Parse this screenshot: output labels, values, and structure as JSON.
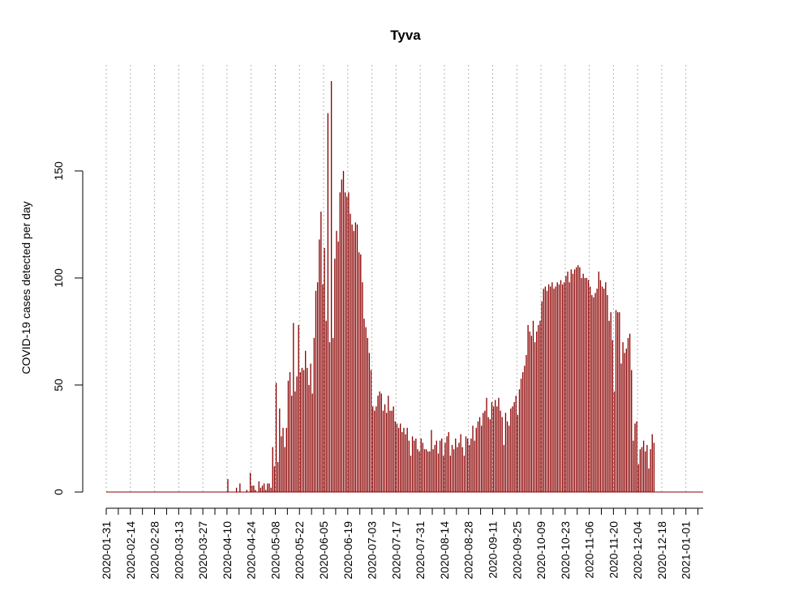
{
  "chart_data": {
    "type": "bar",
    "title": "Tyva",
    "xlabel": "",
    "ylabel": "COVID-19 cases detected per day",
    "ylim": [
      0,
      192
    ],
    "yticks": [
      0,
      50,
      100,
      150
    ],
    "xlim": [
      "2020-01-31",
      "2021-01-11"
    ],
    "x_tick_labels": [
      "2020-01-31",
      "2020-02-14",
      "2020-02-28",
      "2020-03-13",
      "2020-03-27",
      "2020-04-10",
      "2020-04-24",
      "2020-05-08",
      "2020-05-22",
      "2020-06-05",
      "2020-06-19",
      "2020-07-03",
      "2020-07-17",
      "2020-07-31",
      "2020-08-14",
      "2020-08-28",
      "2020-09-11",
      "2020-09-25",
      "2020-10-09",
      "2020-10-23",
      "2020-11-06",
      "2020-11-20",
      "2020-12-04",
      "2020-12-18",
      "2021-01-01"
    ],
    "grid": "vertical dotted lines at labeled dates",
    "bar_color": "#8B0000",
    "series": [
      {
        "start_date": "2020-04-10",
        "values": [
          6,
          0,
          0,
          0,
          0,
          2,
          0,
          4,
          0,
          0,
          0,
          1,
          0,
          9,
          3,
          3,
          1,
          0,
          5,
          2,
          3,
          4,
          1,
          4,
          4,
          2,
          21,
          12,
          51,
          14,
          39,
          26,
          30,
          21,
          30,
          52,
          56,
          45,
          79,
          47,
          54,
          78,
          56,
          58,
          57,
          66,
          58,
          50,
          60,
          46,
          72,
          94,
          98,
          118,
          131,
          97,
          114,
          80,
          177,
          70,
          192,
          72,
          109,
          122,
          117,
          140,
          146,
          150,
          140,
          138,
          140,
          130,
          125,
          122,
          126,
          125,
          112,
          111,
          98,
          81,
          77,
          72,
          65,
          57,
          40,
          38,
          40,
          45,
          47,
          46,
          38,
          41,
          37,
          45,
          38,
          38,
          40,
          33,
          32,
          30,
          32,
          28,
          30,
          27,
          30,
          24,
          17,
          26,
          24,
          25,
          20,
          19,
          25,
          23,
          20,
          20,
          19,
          19,
          29,
          20,
          22,
          24,
          18,
          24,
          25,
          17,
          23,
          26,
          28,
          17,
          22,
          20,
          25,
          21,
          23,
          27,
          21,
          17,
          26,
          25,
          22,
          25,
          31,
          24,
          30,
          33,
          35,
          31,
          37,
          38,
          44,
          35,
          34,
          42,
          40,
          43,
          40,
          44,
          38,
          35,
          22,
          37,
          33,
          31,
          39,
          40,
          42,
          45,
          36,
          48,
          53,
          56,
          59,
          64,
          78,
          75,
          73,
          80,
          70,
          75,
          78,
          80,
          89,
          95,
          96,
          94,
          97,
          96,
          98,
          95,
          96,
          98,
          97,
          99,
          97,
          98,
          101,
          103,
          98,
          104,
          102,
          104,
          105,
          106,
          105,
          100,
          102,
          100,
          100,
          99,
          96,
          92,
          91,
          93,
          95,
          103,
          99,
          96,
          95,
          98,
          92,
          80,
          84,
          71,
          47,
          85,
          84,
          84,
          60,
          70,
          65,
          67,
          72,
          74,
          57,
          24,
          32,
          33,
          13,
          20,
          21,
          24,
          19,
          22,
          11,
          20,
          27,
          23
        ]
      }
    ]
  }
}
